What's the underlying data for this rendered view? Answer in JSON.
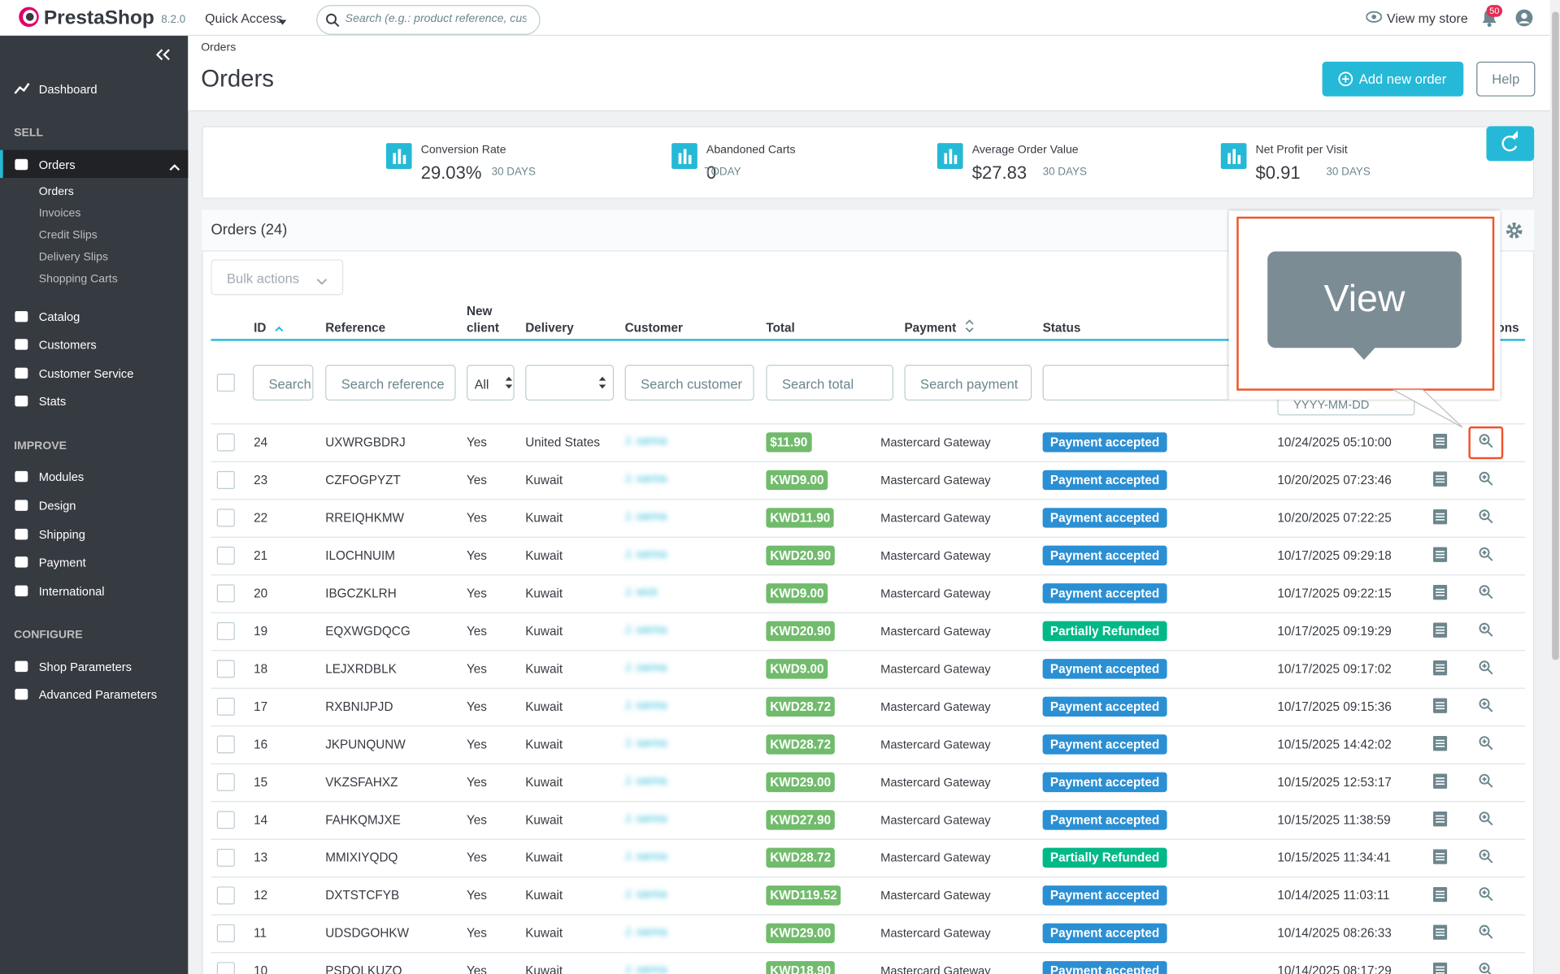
{
  "header": {
    "logo": "PrestaShop",
    "version": "8.2.0",
    "quick_access": "Quick Access",
    "search_placeholder": "Search (e.g.: product reference, custon",
    "view_store": "View my store",
    "notifications": "50"
  },
  "sidebar": {
    "dashboard": "Dashboard",
    "sections": [
      {
        "title": "SELL",
        "items": [
          "Orders",
          "Catalog",
          "Customers",
          "Customer Service",
          "Stats"
        ],
        "subitems": [
          "Orders",
          "Invoices",
          "Credit Slips",
          "Delivery Slips",
          "Shopping Carts"
        ]
      },
      {
        "title": "IMPROVE",
        "items": [
          "Modules",
          "Design",
          "Shipping",
          "Payment",
          "International"
        ]
      },
      {
        "title": "CONFIGURE",
        "items": [
          "Shop Parameters",
          "Advanced Parameters"
        ]
      }
    ]
  },
  "page": {
    "breadcrumb": "Orders",
    "title": "Orders",
    "add_button": "Add new order",
    "help_button": "Help"
  },
  "kpis": [
    {
      "label": "Conversion Rate",
      "value": "29.03%",
      "period": "30 DAYS"
    },
    {
      "label": "Abandoned Carts",
      "value": "0",
      "period": "TODAY"
    },
    {
      "label": "Average Order Value",
      "value": "$27.83",
      "period": "30 DAYS"
    },
    {
      "label": "Net Profit per Visit",
      "value": "$0.91",
      "period": "30 DAYS"
    }
  ],
  "orders": {
    "title": "Orders (24)",
    "bulk_actions": "Bulk actions",
    "columns": {
      "id": "ID",
      "reference": "Reference",
      "new_client": "New client",
      "delivery": "Delivery",
      "customer": "Customer",
      "total": "Total",
      "payment": "Payment",
      "status": "Status",
      "actions": "Actions"
    },
    "filters": {
      "id": "Search ID",
      "reference": "Search reference",
      "new_client": "All",
      "customer": "Search customer",
      "total": "Search total",
      "payment": "Search payment",
      "date": "YYYY-MM-DD"
    },
    "rows": [
      {
        "id": 24,
        "reference": "UXWRGBDRJ",
        "new_client": "Yes",
        "delivery": "United States",
        "customer": "J. sarma",
        "total": "$11.90",
        "payment": "Mastercard Gateway",
        "status": "Payment accepted",
        "status_color": "#2b8fd4",
        "date": "10/24/2025 05:10:00"
      },
      {
        "id": 23,
        "reference": "CZFOGPYZT",
        "new_client": "Yes",
        "delivery": "Kuwait",
        "customer": "J. sarma",
        "total": "KWD9.00",
        "payment": "Mastercard Gateway",
        "status": "Payment accepted",
        "status_color": "#2b8fd4",
        "date": "10/20/2025 07:23:46"
      },
      {
        "id": 22,
        "reference": "RREIQHKMW",
        "new_client": "Yes",
        "delivery": "Kuwait",
        "customer": "J. sarma",
        "total": "KWD11.90",
        "payment": "Mastercard Gateway",
        "status": "Payment accepted",
        "status_color": "#2b8fd4",
        "date": "10/20/2025 07:22:25"
      },
      {
        "id": 21,
        "reference": "ILOCHNUIM",
        "new_client": "Yes",
        "delivery": "Kuwait",
        "customer": "J. sarma",
        "total": "KWD20.90",
        "payment": "Mastercard Gateway",
        "status": "Payment accepted",
        "status_color": "#2b8fd4",
        "date": "10/17/2025 09:29:18"
      },
      {
        "id": 20,
        "reference": "IBGCZKLRH",
        "new_client": "Yes",
        "delivery": "Kuwait",
        "customer": "J. wick",
        "total": "KWD9.00",
        "payment": "Mastercard Gateway",
        "status": "Payment accepted",
        "status_color": "#2b8fd4",
        "date": "10/17/2025 09:22:15"
      },
      {
        "id": 19,
        "reference": "EQXWGDQCG",
        "new_client": "Yes",
        "delivery": "Kuwait",
        "customer": "J. sarma",
        "total": "KWD20.90",
        "payment": "Mastercard Gateway",
        "status": "Partially Refunded",
        "status_color": "#01b887",
        "date": "10/17/2025 09:19:29"
      },
      {
        "id": 18,
        "reference": "LEJXRDBLK",
        "new_client": "Yes",
        "delivery": "Kuwait",
        "customer": "J. sarma",
        "total": "KWD9.00",
        "payment": "Mastercard Gateway",
        "status": "Payment accepted",
        "status_color": "#2b8fd4",
        "date": "10/17/2025 09:17:02"
      },
      {
        "id": 17,
        "reference": "RXBNIJPJD",
        "new_client": "Yes",
        "delivery": "Kuwait",
        "customer": "J. sarma",
        "total": "KWD28.72",
        "payment": "Mastercard Gateway",
        "status": "Payment accepted",
        "status_color": "#2b8fd4",
        "date": "10/17/2025 09:15:36"
      },
      {
        "id": 16,
        "reference": "JKPUNQUNW",
        "new_client": "Yes",
        "delivery": "Kuwait",
        "customer": "J. sarma",
        "total": "KWD28.72",
        "payment": "Mastercard Gateway",
        "status": "Payment accepted",
        "status_color": "#2b8fd4",
        "date": "10/15/2025 14:42:02"
      },
      {
        "id": 15,
        "reference": "VKZSFAHXZ",
        "new_client": "Yes",
        "delivery": "Kuwait",
        "customer": "J. sarma",
        "total": "KWD29.00",
        "payment": "Mastercard Gateway",
        "status": "Payment accepted",
        "status_color": "#2b8fd4",
        "date": "10/15/2025 12:53:17"
      },
      {
        "id": 14,
        "reference": "FAHKQMJXE",
        "new_client": "Yes",
        "delivery": "Kuwait",
        "customer": "J. sarma",
        "total": "KWD27.90",
        "payment": "Mastercard Gateway",
        "status": "Payment accepted",
        "status_color": "#2b8fd4",
        "date": "10/15/2025 11:38:59"
      },
      {
        "id": 13,
        "reference": "MMIXIYQDQ",
        "new_client": "Yes",
        "delivery": "Kuwait",
        "customer": "J. sarma",
        "total": "KWD28.72",
        "payment": "Mastercard Gateway",
        "status": "Partially Refunded",
        "status_color": "#01b887",
        "date": "10/15/2025 11:34:41"
      },
      {
        "id": 12,
        "reference": "DXTSTCFYB",
        "new_client": "Yes",
        "delivery": "Kuwait",
        "customer": "J. sarma",
        "total": "KWD119.52",
        "payment": "Mastercard Gateway",
        "status": "Payment accepted",
        "status_color": "#2b8fd4",
        "date": "10/14/2025 11:03:11"
      },
      {
        "id": 11,
        "reference": "UDSDGOHKW",
        "new_client": "Yes",
        "delivery": "Kuwait",
        "customer": "J. sarma",
        "total": "KWD29.00",
        "payment": "Mastercard Gateway",
        "status": "Payment accepted",
        "status_color": "#2b8fd4",
        "date": "10/14/2025 08:26:33"
      },
      {
        "id": 10,
        "reference": "PSDQLKUZQ",
        "new_client": "Yes",
        "delivery": "Kuwait",
        "customer": "J. sarma",
        "total": "KWD18.90",
        "payment": "Mastercard Gateway",
        "status": "Payment accepted",
        "status_color": "#2b8fd4",
        "date": "10/14/2025 08:17:29"
      }
    ]
  },
  "tooltip": {
    "text": "View"
  }
}
